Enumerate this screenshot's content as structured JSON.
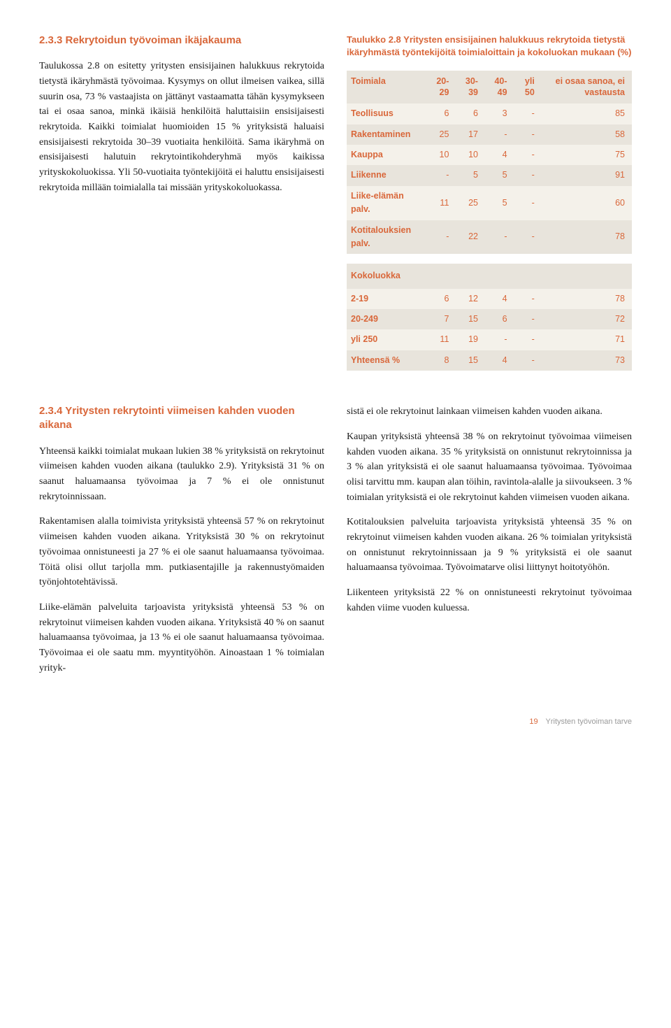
{
  "section233": {
    "heading": "2.3.3 Rekrytoidun työvoiman ikäjakauma",
    "body": "Taulukossa 2.8 on esitetty yritysten ensisijainen halukkuus rekrytoida tietystä ikäryhmästä työvoimaa. Kysymys on ollut ilmeisen vaikea, sillä suurin osa, 73 % vastaajista on jättänyt vastaamatta tähän kysymykseen tai ei osaa sanoa, minkä ikäisiä henkilöitä haluttaisiin ensisijaisesti rekrytoida. Kaikki toimialat huomioiden 15 % yrityksistä haluaisi ensisijaisesti rekrytoida 30–39 vuotiaita henkilöitä. Sama ikäryhmä on ensisijaisesti halutuin rekrytointikohderyhmä myös kaikissa yrityskokoluokissa. Yli 50-vuotiaita työntekijöitä ei haluttu ensisijaisesti rekrytoida millään toimialalla tai missään yrityskokoluokassa."
  },
  "table28": {
    "caption": "Taulukko 2.8 Yritysten ensisijainen halukkuus rekrytoida tietystä ikäryhmästä työntekijöitä toimialoittain ja kokoluokan mukaan (%)",
    "headers": {
      "c0": "Toimiala",
      "c1": "20-29",
      "c2": "30-39",
      "c3": "40-49",
      "c4": "yli 50",
      "c5": "ei osaa sanoa, ei vastausta"
    },
    "rows": [
      {
        "label": "Teollisuus",
        "v": [
          "6",
          "6",
          "3",
          "-",
          "85"
        ]
      },
      {
        "label": "Rakentaminen",
        "v": [
          "25",
          "17",
          "-",
          "-",
          "58"
        ]
      },
      {
        "label": "Kauppa",
        "v": [
          "10",
          "10",
          "4",
          "-",
          "75"
        ]
      },
      {
        "label": "Liikenne",
        "v": [
          "-",
          "5",
          "5",
          "-",
          "91"
        ]
      },
      {
        "label": "Liike-elämän palv.",
        "v": [
          "11",
          "25",
          "5",
          "-",
          "60"
        ]
      },
      {
        "label": "Kotitalouksien palv.",
        "v": [
          "-",
          "22",
          "-",
          "-",
          "78"
        ]
      }
    ],
    "subhead": "Kokoluokka",
    "rows2": [
      {
        "label": "2-19",
        "v": [
          "6",
          "12",
          "4",
          "-",
          "78"
        ]
      },
      {
        "label": "20-249",
        "v": [
          "7",
          "15",
          "6",
          "-",
          "72"
        ]
      },
      {
        "label": "yli 250",
        "v": [
          "11",
          "19",
          "-",
          "-",
          "71"
        ]
      },
      {
        "label": "Yhteensä %",
        "v": [
          "8",
          "15",
          "4",
          "-",
          "73"
        ]
      }
    ],
    "row_bg_colors": {
      "odd": "#f4f1ea",
      "even": "#e8e4dc"
    },
    "header_bg": "#e8e4dc",
    "text_color": "#d9673a"
  },
  "section234": {
    "heading": "2.3.4 Yritysten rekrytointi viimeisen kahden vuoden aikana",
    "left_paras": [
      "Yhteensä kaikki toimialat mukaan lukien 38 % yrityksistä on rekrytoinut viimeisen kahden vuoden aikana (taulukko 2.9). Yrityksistä 31 % on saanut haluamaansa työvoimaa ja 7 % ei ole onnistunut rekrytoinnissaan.",
      "Rakentamisen alalla toimivista yrityksistä yhteensä 57 % on rekrytoinut viimeisen kahden vuoden aikana. Yrityksistä 30 % on rekrytoinut työvoimaa onnistuneesti ja 27 % ei ole saanut haluamaansa työvoimaa. Töitä olisi ollut tarjolla mm. putkiasentajille ja rakennustyömaiden työnjohtotehtävissä.",
      "Liike-elämän palveluita tarjoavista yrityksistä yhteensä 53 % on rekrytoinut viimeisen kahden vuoden aikana. Yrityksistä 40 % on saanut haluamaansa työvoimaa, ja 13 % ei ole saanut haluamaansa työvoimaa. Työvoimaa ei ole saatu mm. myyntityöhön. Ainoastaan 1 % toimialan yrityk-"
    ],
    "right_paras": [
      "sistä ei ole rekrytoinut lainkaan viimeisen kahden vuoden aikana.",
      "Kaupan yrityksistä yhteensä 38 % on rekrytoinut työvoimaa viimeisen kahden vuoden aikana. 35 % yrityksistä on onnistunut rekrytoinnissa ja 3 % alan yrityksistä ei ole saanut haluamaansa työvoimaa. Työvoimaa olisi tarvittu mm. kaupan alan töihin, ravintola-alalle ja siivoukseen. 3 % toimialan yrityksistä ei ole rekrytoinut kahden viimeisen vuoden aikana.",
      "Kotitalouksien palveluita tarjoavista yrityksistä yhteensä 35 % on rekrytoinut viimeisen kahden vuoden aikana. 26 % toimialan yrityksistä on onnistunut rekrytoinnissaan ja 9 % yrityksistä ei ole saanut haluamaansa työvoimaa. Työvoimatarve olisi liittynyt hoitotyöhön.",
      "Liikenteen yrityksistä 22 % on onnistuneesti rekrytoinut työvoimaa kahden viime vuoden kuluessa."
    ]
  },
  "footer": {
    "page": "19",
    "text": "Yritysten työvoiman tarve"
  }
}
